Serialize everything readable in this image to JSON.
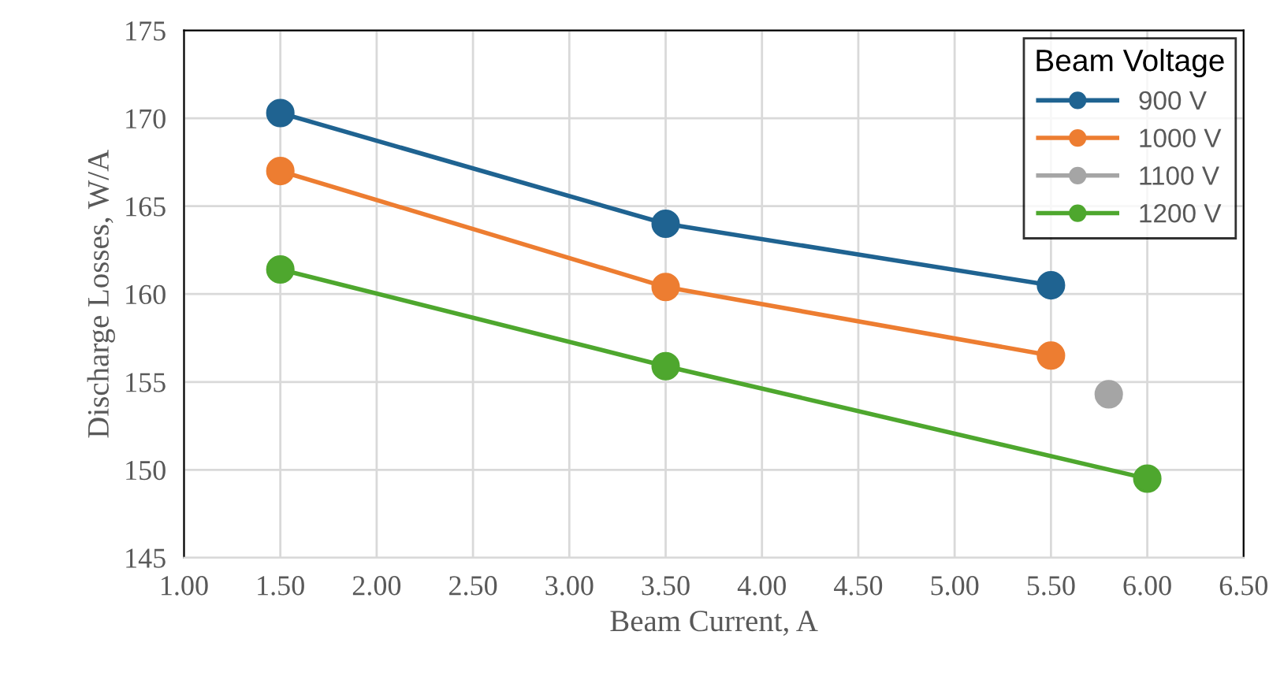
{
  "chart_data": {
    "type": "line",
    "xlabel": "Beam Current, A",
    "ylabel": "Discharge Losses, W/A",
    "legend_title": "Beam Voltage",
    "legend": "top right",
    "grid": true,
    "marker": "circle",
    "line_style": "solid",
    "xlim": [
      1.0,
      6.5
    ],
    "xticks": [
      {
        "value": 1.0,
        "label": "1.00"
      },
      {
        "value": 1.5,
        "label": "1.50"
      },
      {
        "value": 2.0,
        "label": "2.00"
      },
      {
        "value": 2.5,
        "label": "2.50"
      },
      {
        "value": 3.0,
        "label": "3.00"
      },
      {
        "value": 3.5,
        "label": "3.50"
      },
      {
        "value": 4.0,
        "label": "4.00"
      },
      {
        "value": 4.5,
        "label": "4.50"
      },
      {
        "value": 5.0,
        "label": "5.00"
      },
      {
        "value": 5.5,
        "label": "5.50"
      },
      {
        "value": 6.0,
        "label": "6.00"
      },
      {
        "value": 6.5,
        "label": "6.50"
      }
    ],
    "ylim": [
      145,
      175
    ],
    "yticks": [
      145,
      150,
      155,
      160,
      165,
      170,
      175
    ],
    "series": [
      {
        "name": "900 V",
        "color": "#1f6391",
        "x": [
          1.5,
          3.5,
          5.5
        ],
        "values": [
          170.3,
          164.0,
          160.5
        ]
      },
      {
        "name": "1000 V",
        "color": "#ed7d31",
        "x": [
          1.5,
          3.5,
          5.5
        ],
        "values": [
          167.0,
          160.4,
          156.5
        ]
      },
      {
        "name": "1100 V",
        "color": "#a5a5a5",
        "x": [
          5.8
        ],
        "values": [
          154.3
        ]
      },
      {
        "name": "1200 V",
        "color": "#4ea72e",
        "x": [
          1.5,
          3.5,
          6.0
        ],
        "values": [
          161.4,
          155.9,
          149.5
        ]
      }
    ]
  }
}
